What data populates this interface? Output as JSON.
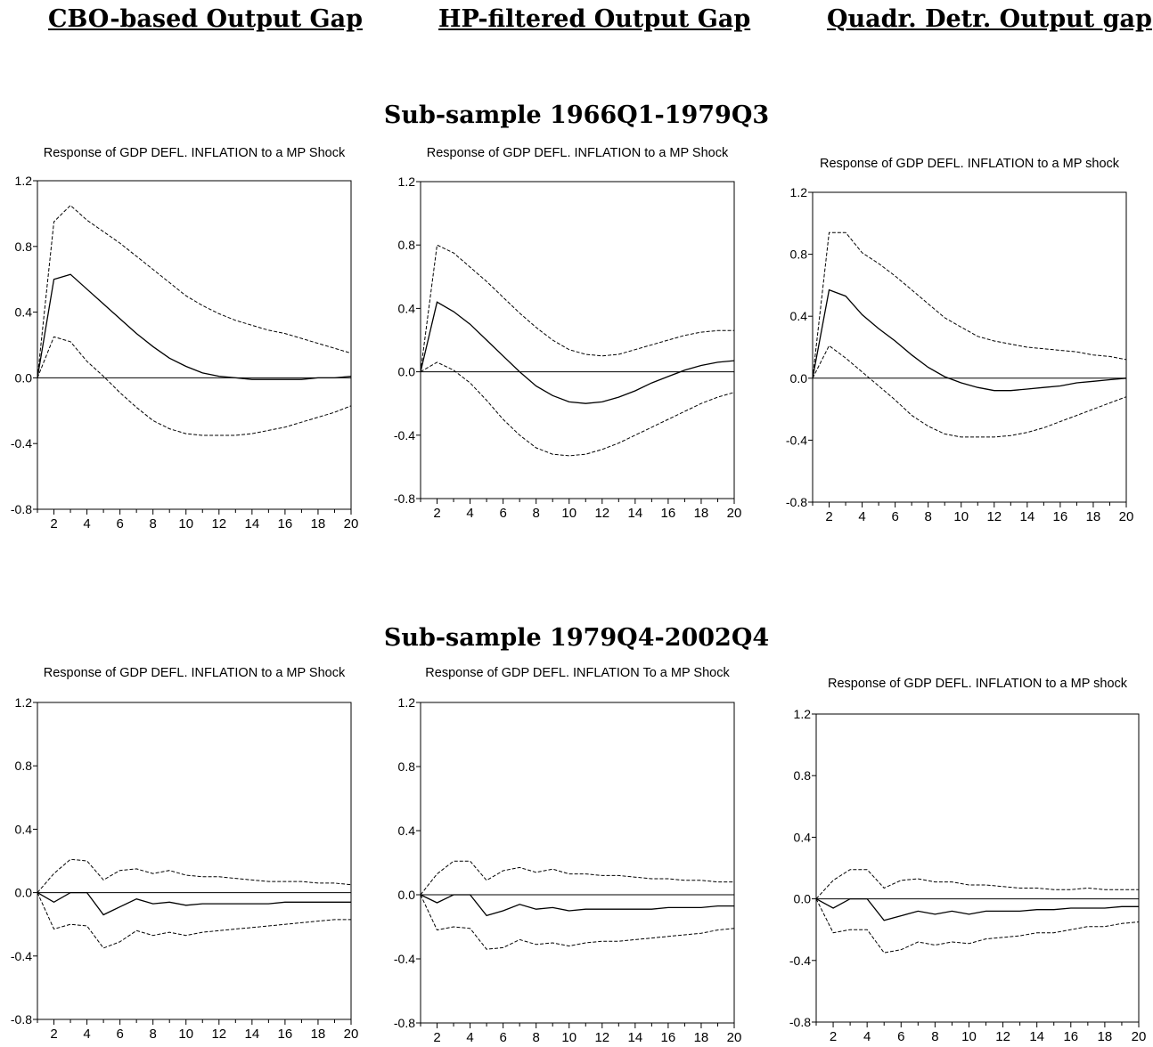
{
  "column_headers": [
    "CBO-based Output Gap",
    "HP-filtered Output Gap",
    "Quadr. Detr. Output gap"
  ],
  "row_headers": [
    "Sub-sample 1966Q1-1979Q3",
    "Sub-sample 1979Q4-2002Q4"
  ],
  "chart_data": [
    {
      "type": "line",
      "title": "Response of GDP DEFL. INFLATION to a MP Shock",
      "x": [
        1,
        2,
        3,
        4,
        5,
        6,
        7,
        8,
        9,
        10,
        11,
        12,
        13,
        14,
        15,
        16,
        17,
        18,
        19,
        20
      ],
      "xticks": [
        2,
        4,
        6,
        8,
        10,
        12,
        14,
        16,
        18,
        20
      ],
      "yticks": [
        -0.8,
        -0.4,
        0.0,
        0.4,
        0.8,
        1.2
      ],
      "ylim": [
        -0.8,
        1.2
      ],
      "zero_line": true,
      "series": [
        {
          "style": "solid",
          "values": [
            0.0,
            0.6,
            0.63,
            0.54,
            0.45,
            0.36,
            0.27,
            0.19,
            0.12,
            0.07,
            0.03,
            0.01,
            0.0,
            -0.01,
            -0.01,
            -0.01,
            -0.01,
            0.0,
            0.0,
            0.01
          ]
        },
        {
          "style": "dashed",
          "values": [
            0.0,
            0.95,
            1.05,
            0.96,
            0.89,
            0.82,
            0.74,
            0.66,
            0.58,
            0.5,
            0.44,
            0.39,
            0.35,
            0.32,
            0.29,
            0.27,
            0.24,
            0.21,
            0.18,
            0.15
          ]
        },
        {
          "style": "dashed",
          "values": [
            0.0,
            0.25,
            0.22,
            0.1,
            0.01,
            -0.09,
            -0.18,
            -0.26,
            -0.31,
            -0.34,
            -0.35,
            -0.35,
            -0.35,
            -0.34,
            -0.32,
            -0.3,
            -0.27,
            -0.24,
            -0.21,
            -0.17
          ]
        }
      ]
    },
    {
      "type": "line",
      "title": "Response of GDP DEFL. INFLATION to a MP Shock",
      "x": [
        1,
        2,
        3,
        4,
        5,
        6,
        7,
        8,
        9,
        10,
        11,
        12,
        13,
        14,
        15,
        16,
        17,
        18,
        19,
        20
      ],
      "xticks": [
        2,
        4,
        6,
        8,
        10,
        12,
        14,
        16,
        18,
        20
      ],
      "yticks": [
        -0.8,
        -0.4,
        0.0,
        0.4,
        0.8,
        1.2
      ],
      "ylim": [
        -0.8,
        1.2
      ],
      "zero_line": true,
      "series": [
        {
          "style": "solid",
          "values": [
            0.0,
            0.44,
            0.38,
            0.3,
            0.2,
            0.1,
            0.0,
            -0.09,
            -0.15,
            -0.19,
            -0.2,
            -0.19,
            -0.16,
            -0.12,
            -0.07,
            -0.03,
            0.01,
            0.04,
            0.06,
            0.07
          ]
        },
        {
          "style": "dashed",
          "values": [
            0.0,
            0.8,
            0.75,
            0.66,
            0.57,
            0.47,
            0.37,
            0.28,
            0.2,
            0.14,
            0.11,
            0.1,
            0.11,
            0.14,
            0.17,
            0.2,
            0.23,
            0.25,
            0.26,
            0.26
          ]
        },
        {
          "style": "dashed",
          "values": [
            0.0,
            0.06,
            0.01,
            -0.07,
            -0.18,
            -0.3,
            -0.4,
            -0.48,
            -0.52,
            -0.53,
            -0.52,
            -0.49,
            -0.45,
            -0.4,
            -0.35,
            -0.3,
            -0.25,
            -0.2,
            -0.16,
            -0.13
          ]
        }
      ]
    },
    {
      "type": "line",
      "title": "Response of GDP DEFL. INFLATION to a MP shock",
      "x": [
        1,
        2,
        3,
        4,
        5,
        6,
        7,
        8,
        9,
        10,
        11,
        12,
        13,
        14,
        15,
        16,
        17,
        18,
        19,
        20
      ],
      "xticks": [
        2,
        4,
        6,
        8,
        10,
        12,
        14,
        16,
        18,
        20
      ],
      "yticks": [
        -0.8,
        -0.4,
        0.0,
        0.4,
        0.8,
        1.2
      ],
      "ylim": [
        -0.8,
        1.2
      ],
      "zero_line": true,
      "series": [
        {
          "style": "solid",
          "values": [
            0.0,
            0.57,
            0.53,
            0.41,
            0.32,
            0.24,
            0.15,
            0.07,
            0.01,
            -0.03,
            -0.06,
            -0.08,
            -0.08,
            -0.07,
            -0.06,
            -0.05,
            -0.03,
            -0.02,
            -0.01,
            0.0
          ]
        },
        {
          "style": "dashed",
          "values": [
            0.0,
            0.94,
            0.94,
            0.81,
            0.74,
            0.66,
            0.57,
            0.48,
            0.39,
            0.33,
            0.27,
            0.24,
            0.22,
            0.2,
            0.19,
            0.18,
            0.17,
            0.15,
            0.14,
            0.12
          ]
        },
        {
          "style": "dashed",
          "values": [
            0.0,
            0.21,
            0.13,
            0.04,
            -0.05,
            -0.14,
            -0.24,
            -0.31,
            -0.36,
            -0.38,
            -0.38,
            -0.38,
            -0.37,
            -0.35,
            -0.32,
            -0.28,
            -0.24,
            -0.2,
            -0.16,
            -0.12
          ]
        }
      ]
    },
    {
      "type": "line",
      "title": "Response of GDP DEFL. INFLATION to a MP Shock",
      "x": [
        1,
        2,
        3,
        4,
        5,
        6,
        7,
        8,
        9,
        10,
        11,
        12,
        13,
        14,
        15,
        16,
        17,
        18,
        19,
        20
      ],
      "xticks": [
        2,
        4,
        6,
        8,
        10,
        12,
        14,
        16,
        18,
        20
      ],
      "yticks": [
        -0.8,
        -0.4,
        0.0,
        0.4,
        0.8,
        1.2
      ],
      "ylim": [
        -0.8,
        1.2
      ],
      "zero_line": true,
      "series": [
        {
          "style": "solid",
          "values": [
            0.0,
            -0.06,
            0.0,
            0.0,
            -0.14,
            -0.09,
            -0.04,
            -0.07,
            -0.06,
            -0.08,
            -0.07,
            -0.07,
            -0.07,
            -0.07,
            -0.07,
            -0.06,
            -0.06,
            -0.06,
            -0.06,
            -0.06
          ]
        },
        {
          "style": "dashed",
          "values": [
            0.0,
            0.12,
            0.21,
            0.2,
            0.08,
            0.14,
            0.15,
            0.12,
            0.14,
            0.11,
            0.1,
            0.1,
            0.09,
            0.08,
            0.07,
            0.07,
            0.07,
            0.06,
            0.06,
            0.05
          ]
        },
        {
          "style": "dashed",
          "values": [
            0.0,
            -0.23,
            -0.2,
            -0.21,
            -0.35,
            -0.31,
            -0.24,
            -0.27,
            -0.25,
            -0.27,
            -0.25,
            -0.24,
            -0.23,
            -0.22,
            -0.21,
            -0.2,
            -0.19,
            -0.18,
            -0.17,
            -0.17
          ]
        }
      ]
    },
    {
      "type": "line",
      "title": "Response of GDP DEFL. INFLATION To a MP Shock",
      "x": [
        1,
        2,
        3,
        4,
        5,
        6,
        7,
        8,
        9,
        10,
        11,
        12,
        13,
        14,
        15,
        16,
        17,
        18,
        19,
        20
      ],
      "xticks": [
        2,
        4,
        6,
        8,
        10,
        12,
        14,
        16,
        18,
        20
      ],
      "yticks": [
        -0.8,
        -0.4,
        0.0,
        0.4,
        0.8,
        1.2
      ],
      "ylim": [
        -0.8,
        1.2
      ],
      "zero_line": true,
      "series": [
        {
          "style": "solid",
          "values": [
            0.0,
            -0.05,
            0.0,
            0.0,
            -0.13,
            -0.1,
            -0.06,
            -0.09,
            -0.08,
            -0.1,
            -0.09,
            -0.09,
            -0.09,
            -0.09,
            -0.09,
            -0.08,
            -0.08,
            -0.08,
            -0.07,
            -0.07
          ]
        },
        {
          "style": "dashed",
          "values": [
            0.0,
            0.13,
            0.21,
            0.21,
            0.09,
            0.15,
            0.17,
            0.14,
            0.16,
            0.13,
            0.13,
            0.12,
            0.12,
            0.11,
            0.1,
            0.1,
            0.09,
            0.09,
            0.08,
            0.08
          ]
        },
        {
          "style": "dashed",
          "values": [
            0.0,
            -0.22,
            -0.2,
            -0.21,
            -0.34,
            -0.33,
            -0.28,
            -0.31,
            -0.3,
            -0.32,
            -0.3,
            -0.29,
            -0.29,
            -0.28,
            -0.27,
            -0.26,
            -0.25,
            -0.24,
            -0.22,
            -0.21
          ]
        }
      ]
    },
    {
      "type": "line",
      "title": "Response of GDP DEFL. INFLATION to a MP shock",
      "x": [
        1,
        2,
        3,
        4,
        5,
        6,
        7,
        8,
        9,
        10,
        11,
        12,
        13,
        14,
        15,
        16,
        17,
        18,
        19,
        20
      ],
      "xticks": [
        2,
        4,
        6,
        8,
        10,
        12,
        14,
        16,
        18,
        20
      ],
      "yticks": [
        -0.8,
        -0.4,
        0.0,
        0.4,
        0.8,
        1.2
      ],
      "ylim": [
        -0.8,
        1.2
      ],
      "zero_line": true,
      "series": [
        {
          "style": "solid",
          "values": [
            0.0,
            -0.06,
            0.0,
            0.0,
            -0.14,
            -0.11,
            -0.08,
            -0.1,
            -0.08,
            -0.1,
            -0.08,
            -0.08,
            -0.08,
            -0.07,
            -0.07,
            -0.06,
            -0.06,
            -0.06,
            -0.05,
            -0.05
          ]
        },
        {
          "style": "dashed",
          "values": [
            0.0,
            0.12,
            0.19,
            0.19,
            0.07,
            0.12,
            0.13,
            0.11,
            0.11,
            0.09,
            0.09,
            0.08,
            0.07,
            0.07,
            0.06,
            0.06,
            0.07,
            0.06,
            0.06,
            0.06
          ]
        },
        {
          "style": "dashed",
          "values": [
            0.0,
            -0.22,
            -0.2,
            -0.2,
            -0.35,
            -0.33,
            -0.28,
            -0.3,
            -0.28,
            -0.29,
            -0.26,
            -0.25,
            -0.24,
            -0.22,
            -0.22,
            -0.2,
            -0.18,
            -0.18,
            -0.16,
            -0.15
          ]
        }
      ]
    }
  ]
}
